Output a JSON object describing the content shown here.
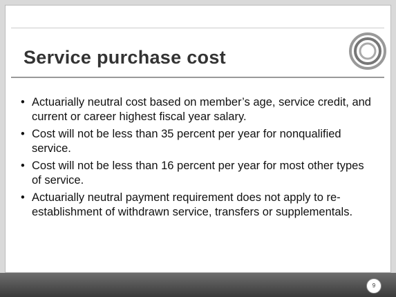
{
  "slide": {
    "title": "Service purchase cost",
    "bullets": [
      "Actuarially neutral cost based on member’s age, service credit, and current or career highest fiscal year salary.",
      "Cost will not be less than 35 percent per year for nonqualified service.",
      "Cost will not be less than 16 percent per year for most other types of service.",
      "Actuarially neutral payment requirement does not apply to re-establishment of withdrawn service, transfers or supplementals."
    ],
    "page_number": "9"
  }
}
